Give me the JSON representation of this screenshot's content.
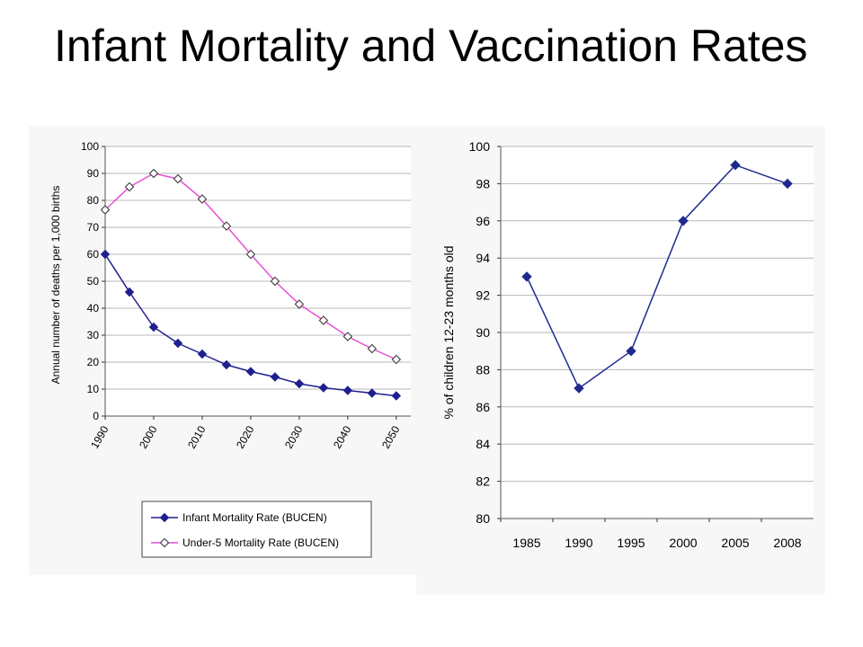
{
  "slide": {
    "title": "Infant Mortality and Vaccination Rates"
  },
  "colors": {
    "infant": "#1f1f8f",
    "under5": "#e64fd6",
    "vacc": "#1f2a8f",
    "grid": "#b8b8b8",
    "panel": "#f7f7f7"
  },
  "chart_data": [
    {
      "type": "line",
      "title": "",
      "xlabel": "",
      "ylabel": "Annual number of deaths per 1,000 births",
      "ylim": [
        0,
        100
      ],
      "yticks": [
        0,
        10,
        20,
        30,
        40,
        50,
        60,
        70,
        80,
        90,
        100
      ],
      "xlim": [
        1990,
        2053
      ],
      "xticks": [
        1990,
        2000,
        2010,
        2020,
        2030,
        2040,
        2050
      ],
      "grid": true,
      "legend_position": "bottom",
      "series": [
        {
          "name": "Infant Mortality Rate (BUCEN)",
          "marker": "diamond-filled",
          "color": "#1f1f8f",
          "x": [
            1990,
            1995,
            2000,
            2005,
            2010,
            2015,
            2020,
            2025,
            2030,
            2035,
            2040,
            2045,
            2050
          ],
          "values": [
            60,
            46,
            33,
            27,
            23,
            19,
            16.5,
            14.5,
            12,
            10.5,
            9.5,
            8.5,
            7.5
          ]
        },
        {
          "name": "Under-5 Mortality Rate (BUCEN)",
          "marker": "diamond-open",
          "color": "#e64fd6",
          "x": [
            1990,
            1995,
            2000,
            2005,
            2010,
            2015,
            2020,
            2025,
            2030,
            2035,
            2040,
            2045,
            2050
          ],
          "values": [
            76.5,
            85,
            90,
            88,
            80.5,
            70.5,
            60,
            50,
            41.5,
            35.5,
            29.5,
            25,
            21
          ]
        }
      ]
    },
    {
      "type": "line",
      "title": "",
      "xlabel": "",
      "ylabel": "% of children 12-23 months old",
      "ylim": [
        80,
        100
      ],
      "yticks": [
        80,
        82,
        84,
        86,
        88,
        90,
        92,
        94,
        96,
        98,
        100
      ],
      "grid": true,
      "categories": [
        "1985",
        "1990",
        "1995",
        "2000",
        "2005",
        "2008"
      ],
      "series": [
        {
          "marker": "diamond-filled",
          "color": "#1f2a8f",
          "values": [
            93,
            87,
            89,
            96,
            99,
            98
          ]
        }
      ]
    }
  ]
}
